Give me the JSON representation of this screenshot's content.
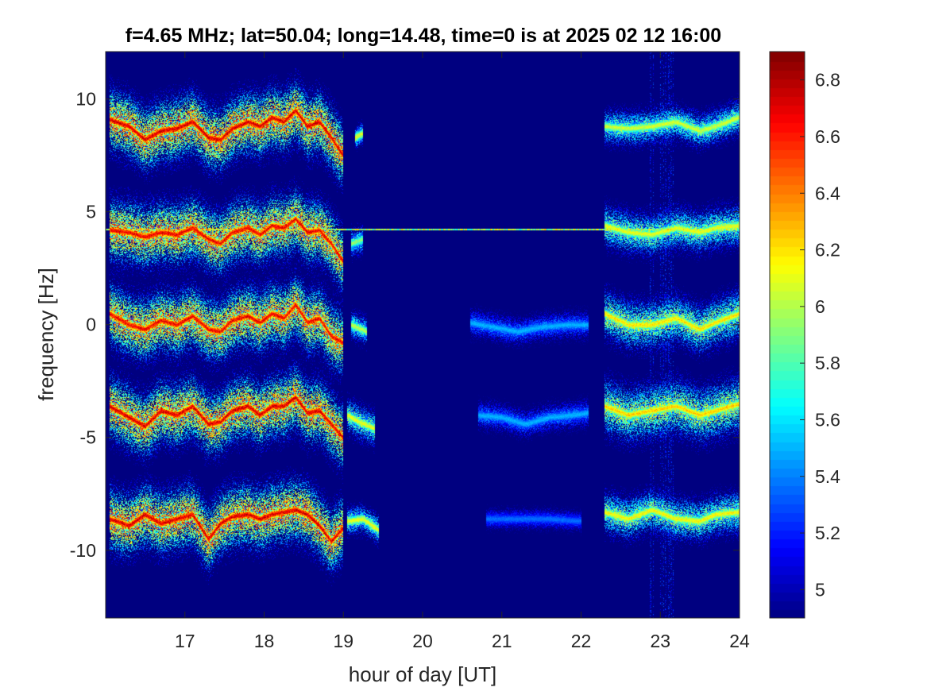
{
  "chart_data": {
    "type": "heatmap",
    "title": "f=4.65 MHz;  lat=50.04; long=14.48, time=0 is at 2025 02 12 16:00",
    "xlabel": "hour of day [UT]",
    "ylabel": "frequency [Hz]",
    "xlim": [
      16,
      24
    ],
    "ylim": [
      -13,
      12.1
    ],
    "x_ticks": [
      17,
      18,
      19,
      20,
      21,
      22,
      23,
      24
    ],
    "x_tick_labels": [
      "17",
      "18",
      "19",
      "20",
      "21",
      "22",
      "23",
      "24"
    ],
    "y_ticks": [
      10,
      5,
      0,
      -5,
      -10
    ],
    "y_tick_labels": [
      "10",
      "5",
      "0",
      "-5",
      "-10"
    ],
    "colorbar": {
      "colormap": "jet",
      "clim": [
        4.9,
        6.9
      ],
      "ticks": [
        6.8,
        6.6,
        6.4,
        6.2,
        6,
        5.8,
        5.6,
        5.4,
        5.2,
        5
      ],
      "tick_labels": [
        "6.8",
        "6.6",
        "6.4",
        "6.2",
        "6",
        "5.8",
        "5.6",
        "5.4",
        "5.2",
        "5"
      ]
    },
    "background_value": 4.9,
    "steady_line": {
      "freq": 4.2,
      "x_range": [
        16,
        24
      ],
      "value": 6.0
    },
    "traces": [
      {
        "center_freq": 9,
        "segments": [
          {
            "points": [
              [
                16.05,
                9.1
              ],
              [
                16.3,
                8.8
              ],
              [
                16.5,
                8.2
              ],
              [
                16.7,
                8.6
              ],
              [
                16.9,
                8.7
              ],
              [
                17.1,
                9.0
              ],
              [
                17.3,
                8.3
              ],
              [
                17.45,
                8.2
              ],
              [
                17.6,
                8.7
              ],
              [
                17.8,
                9.0
              ],
              [
                17.95,
                8.8
              ],
              [
                18.1,
                9.2
              ],
              [
                18.25,
                9.0
              ],
              [
                18.4,
                9.5
              ],
              [
                18.55,
                8.8
              ],
              [
                18.7,
                9.0
              ],
              [
                18.85,
                8.3
              ],
              [
                19.0,
                7.5
              ]
            ],
            "peak": 6.85,
            "spread": 0.9
          },
          {
            "points": [
              [
                19.15,
                8.3
              ],
              [
                19.25,
                8.5
              ]
            ],
            "peak": 6.2,
            "spread": 0.3
          },
          {
            "points": [
              [
                22.3,
                8.8
              ],
              [
                22.6,
                8.7
              ],
              [
                22.9,
                8.8
              ],
              [
                23.2,
                9.0
              ],
              [
                23.5,
                8.6
              ],
              [
                23.7,
                8.8
              ],
              [
                24.0,
                9.2
              ]
            ],
            "peak": 6.15,
            "spread": 0.5
          }
        ]
      },
      {
        "center_freq": 4,
        "segments": [
          {
            "points": [
              [
                16.05,
                4.2
              ],
              [
                16.3,
                4.1
              ],
              [
                16.5,
                3.9
              ],
              [
                16.7,
                4.1
              ],
              [
                16.9,
                4.0
              ],
              [
                17.1,
                4.3
              ],
              [
                17.3,
                3.8
              ],
              [
                17.45,
                3.6
              ],
              [
                17.6,
                4.1
              ],
              [
                17.8,
                4.3
              ],
              [
                17.95,
                4.0
              ],
              [
                18.1,
                4.4
              ],
              [
                18.25,
                4.3
              ],
              [
                18.4,
                4.7
              ],
              [
                18.55,
                4.1
              ],
              [
                18.7,
                4.2
              ],
              [
                18.85,
                3.6
              ],
              [
                19.0,
                2.8
              ]
            ],
            "peak": 6.8,
            "spread": 0.9
          },
          {
            "points": [
              [
                19.1,
                3.6
              ],
              [
                19.25,
                3.8
              ]
            ],
            "peak": 6.0,
            "spread": 0.4
          },
          {
            "points": [
              [
                22.3,
                4.4
              ],
              [
                22.6,
                4.1
              ],
              [
                22.9,
                4.0
              ],
              [
                23.2,
                4.3
              ],
              [
                23.5,
                4.1
              ],
              [
                23.7,
                4.3
              ],
              [
                24.0,
                4.4
              ]
            ],
            "peak": 6.2,
            "spread": 0.6
          }
        ]
      },
      {
        "center_freq": 0,
        "segments": [
          {
            "points": [
              [
                16.05,
                0.5
              ],
              [
                16.3,
                0.0
              ],
              [
                16.5,
                -0.2
              ],
              [
                16.7,
                0.2
              ],
              [
                16.9,
                0.0
              ],
              [
                17.1,
                0.4
              ],
              [
                17.3,
                -0.2
              ],
              [
                17.45,
                -0.3
              ],
              [
                17.6,
                0.2
              ],
              [
                17.8,
                0.4
              ],
              [
                17.95,
                0.1
              ],
              [
                18.1,
                0.5
              ],
              [
                18.25,
                0.3
              ],
              [
                18.4,
                0.9
              ],
              [
                18.55,
                0.1
              ],
              [
                18.7,
                0.3
              ],
              [
                18.85,
                -0.5
              ],
              [
                19.0,
                -0.8
              ]
            ],
            "peak": 6.8,
            "spread": 0.9
          },
          {
            "points": [
              [
                19.1,
                0.0
              ],
              [
                19.3,
                -0.3
              ]
            ],
            "peak": 6.1,
            "spread": 0.4
          },
          {
            "points": [
              [
                20.6,
                0.1
              ],
              [
                20.9,
                -0.1
              ],
              [
                21.2,
                -0.3
              ],
              [
                21.5,
                -0.1
              ],
              [
                21.8,
                0.0
              ],
              [
                22.1,
                0.0
              ]
            ],
            "peak": 5.55,
            "spread": 0.4
          },
          {
            "points": [
              [
                22.3,
                0.5
              ],
              [
                22.6,
                0.0
              ],
              [
                22.9,
                0.0
              ],
              [
                23.2,
                0.3
              ],
              [
                23.5,
                -0.2
              ],
              [
                23.7,
                0.1
              ],
              [
                24.0,
                0.5
              ]
            ],
            "peak": 6.3,
            "spread": 0.7
          }
        ]
      },
      {
        "center_freq": -4,
        "segments": [
          {
            "points": [
              [
                16.05,
                -3.6
              ],
              [
                16.3,
                -4.1
              ],
              [
                16.5,
                -4.5
              ],
              [
                16.7,
                -3.8
              ],
              [
                16.9,
                -4.0
              ],
              [
                17.1,
                -3.6
              ],
              [
                17.3,
                -4.4
              ],
              [
                17.45,
                -4.3
              ],
              [
                17.6,
                -3.8
              ],
              [
                17.8,
                -3.6
              ],
              [
                17.95,
                -4.0
              ],
              [
                18.1,
                -3.6
              ],
              [
                18.25,
                -3.6
              ],
              [
                18.4,
                -3.2
              ],
              [
                18.55,
                -3.9
              ],
              [
                18.7,
                -3.8
              ],
              [
                18.85,
                -4.4
              ],
              [
                19.0,
                -5.0
              ]
            ],
            "peak": 6.85,
            "spread": 0.9
          },
          {
            "points": [
              [
                19.05,
                -4.0
              ],
              [
                19.2,
                -4.3
              ],
              [
                19.4,
                -4.6
              ]
            ],
            "peak": 6.2,
            "spread": 0.5
          },
          {
            "points": [
              [
                20.7,
                -4.0
              ],
              [
                21.0,
                -4.1
              ],
              [
                21.3,
                -4.4
              ],
              [
                21.6,
                -4.1
              ],
              [
                21.9,
                -4.0
              ],
              [
                22.1,
                -3.9
              ]
            ],
            "peak": 5.55,
            "spread": 0.4
          },
          {
            "points": [
              [
                22.3,
                -3.6
              ],
              [
                22.6,
                -4.0
              ],
              [
                22.9,
                -3.8
              ],
              [
                23.2,
                -3.6
              ],
              [
                23.5,
                -4.0
              ],
              [
                23.7,
                -3.8
              ],
              [
                24.0,
                -3.5
              ]
            ],
            "peak": 6.35,
            "spread": 0.8
          }
        ]
      },
      {
        "center_freq": -8.5,
        "segments": [
          {
            "points": [
              [
                16.05,
                -8.6
              ],
              [
                16.3,
                -8.9
              ],
              [
                16.5,
                -8.4
              ],
              [
                16.7,
                -8.8
              ],
              [
                16.9,
                -8.6
              ],
              [
                17.1,
                -8.4
              ],
              [
                17.3,
                -9.5
              ],
              [
                17.45,
                -8.8
              ],
              [
                17.6,
                -8.5
              ],
              [
                17.8,
                -8.4
              ],
              [
                17.95,
                -8.6
              ],
              [
                18.1,
                -8.4
              ],
              [
                18.25,
                -8.3
              ],
              [
                18.4,
                -8.2
              ],
              [
                18.55,
                -8.4
              ],
              [
                18.7,
                -8.9
              ],
              [
                18.85,
                -9.6
              ],
              [
                19.0,
                -9.0
              ]
            ],
            "peak": 6.85,
            "spread": 0.9
          },
          {
            "points": [
              [
                19.05,
                -8.7
              ],
              [
                19.25,
                -8.6
              ],
              [
                19.45,
                -9.1
              ]
            ],
            "peak": 6.2,
            "spread": 0.4
          },
          {
            "points": [
              [
                20.8,
                -8.6
              ],
              [
                21.2,
                -8.6
              ],
              [
                21.6,
                -8.6
              ],
              [
                22.0,
                -8.7
              ]
            ],
            "peak": 5.4,
            "spread": 0.3
          },
          {
            "points": [
              [
                22.3,
                -8.3
              ],
              [
                22.6,
                -8.6
              ],
              [
                22.9,
                -8.2
              ],
              [
                23.2,
                -8.6
              ],
              [
                23.5,
                -8.7
              ],
              [
                23.7,
                -8.4
              ],
              [
                24.0,
                -8.3
              ]
            ],
            "peak": 6.25,
            "spread": 0.6
          }
        ]
      }
    ],
    "vertical_bands": [
      {
        "x": [
          22.85,
          23.2
        ],
        "value": 5.35
      }
    ]
  }
}
